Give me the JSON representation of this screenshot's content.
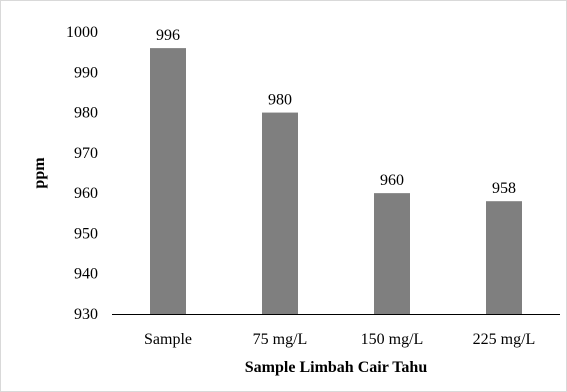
{
  "chart_data": {
    "type": "bar",
    "categories": [
      "Sample",
      "75 mg/L",
      "150 mg/L",
      "225 mg/L"
    ],
    "values": [
      996,
      980,
      960,
      958
    ],
    "data_labels": [
      "996",
      "980",
      "960",
      "958"
    ],
    "title": "",
    "xlabel": "Sample Limbah  Cair Tahu",
    "ylabel": "ppm",
    "ylim": [
      930,
      1000
    ],
    "yticks": [
      "930",
      "940",
      "950",
      "960",
      "970",
      "980",
      "990",
      "1000"
    ],
    "grid": false,
    "legend": "none",
    "bar_color": "#7f7f7f"
  }
}
